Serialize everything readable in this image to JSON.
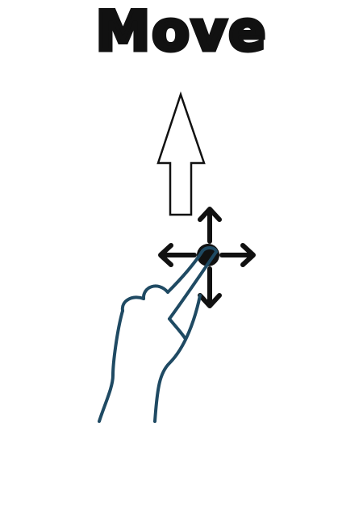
{
  "title": "Move",
  "icon": "move-gesture-icon",
  "colors": {
    "ink": "#111111",
    "hand": "#1f4a63",
    "arrow_fill": "#ffffff"
  }
}
